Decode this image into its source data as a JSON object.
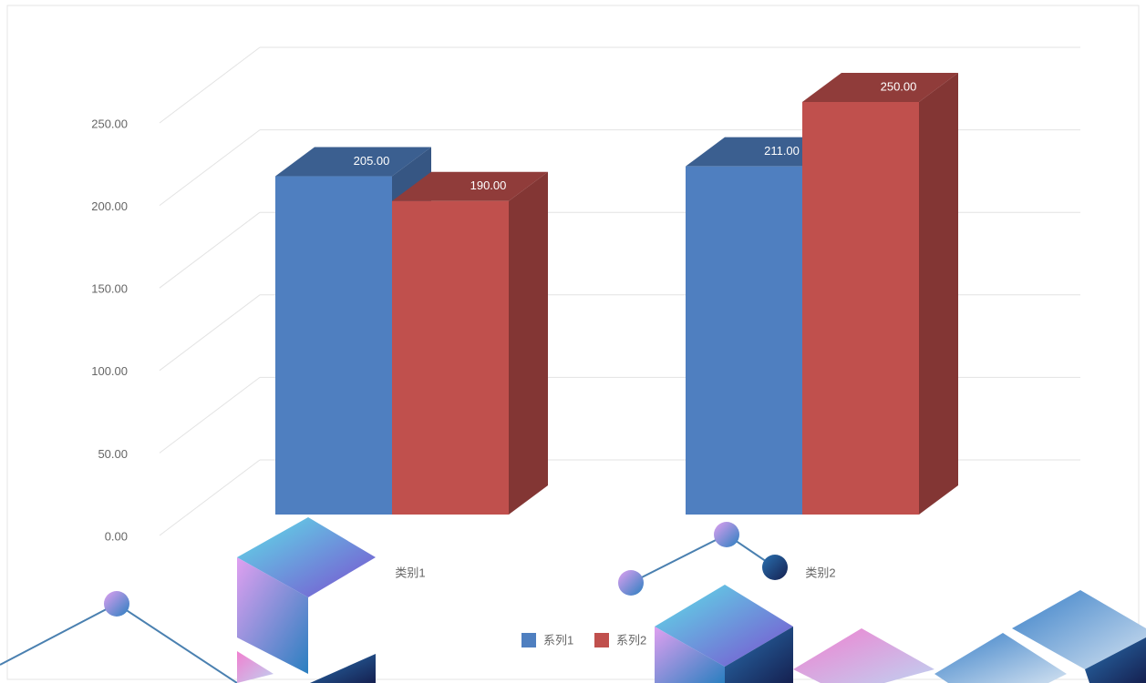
{
  "chart_data": {
    "type": "bar3d",
    "categories": [
      "类别1",
      "类别2"
    ],
    "series": [
      {
        "name": "系列1",
        "color": "#4f7fc0",
        "values": [
          205,
          211
        ],
        "value_labels": [
          "205.00",
          "211.00"
        ]
      },
      {
        "name": "系列2",
        "color": "#c0504d",
        "values": [
          190,
          250
        ],
        "value_labels": [
          "190.00",
          "250.00"
        ]
      }
    ],
    "ylim": [
      0,
      250
    ],
    "yticks": [
      {
        "value": 0,
        "label": "0.00"
      },
      {
        "value": 50,
        "label": "50.00"
      },
      {
        "value": 100,
        "label": "100.00"
      },
      {
        "value": 150,
        "label": "150.00"
      },
      {
        "value": 200,
        "label": "200.00"
      },
      {
        "value": 250,
        "label": "250.00"
      }
    ],
    "grid": true,
    "legend": "bottom"
  }
}
